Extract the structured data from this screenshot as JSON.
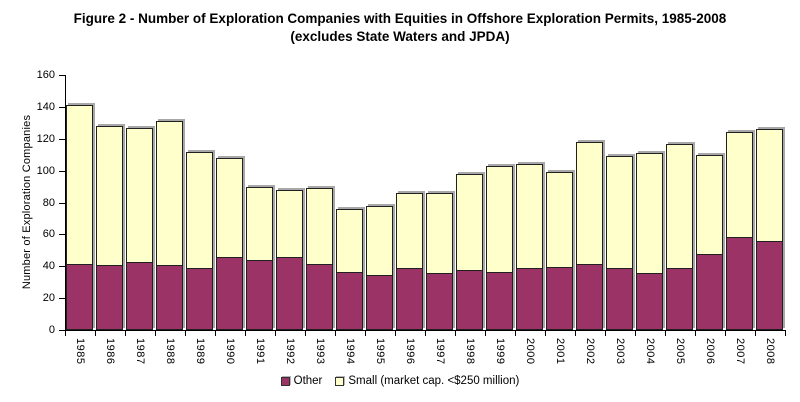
{
  "chart_data": {
    "type": "bar",
    "stacked": true,
    "title": "Figure 2 - Number of Exploration Companies with Equities in Offshore Exploration Permits, 1985-2008",
    "subtitle": "(excludes State Waters and JPDA)",
    "ylabel": "Number of Exploration Companies",
    "xlabel": "",
    "ylim": [
      0,
      160
    ],
    "yticks": [
      0,
      20,
      40,
      60,
      80,
      100,
      120,
      140,
      160
    ],
    "grid": false,
    "legend_position": "bottom",
    "categories": [
      "1985",
      "1986",
      "1987",
      "1988",
      "1989",
      "1990",
      "1991",
      "1992",
      "1993",
      "1994",
      "1995",
      "1996",
      "1997",
      "1998",
      "1999",
      "2000",
      "2001",
      "2002",
      "2003",
      "2004",
      "2005",
      "2006",
      "2007",
      "2008"
    ],
    "series": [
      {
        "name": "Other",
        "color": "#9C3366",
        "values": [
          41,
          40,
          42,
          40,
          38,
          45,
          43,
          45,
          41,
          36,
          34,
          38,
          35,
          37,
          36,
          38,
          39,
          41,
          38,
          35,
          38,
          47,
          58,
          55
        ]
      },
      {
        "name": "Small (market cap. <$250 million)",
        "color": "#FFFFCC",
        "values": [
          100,
          88,
          85,
          91,
          74,
          63,
          47,
          43,
          48,
          40,
          44,
          48,
          51,
          61,
          67,
          66,
          60,
          77,
          71,
          76,
          79,
          63,
          66,
          71
        ]
      }
    ],
    "totals": [
      141,
      128,
      127,
      131,
      112,
      108,
      90,
      88,
      89,
      76,
      78,
      86,
      86,
      98,
      103,
      104,
      99,
      118,
      109,
      111,
      117,
      110,
      124,
      126
    ]
  },
  "colors": {
    "axis": "#000000",
    "bar_border": "#202020",
    "bar_shadow": "#a8a8a8",
    "background": "#ffffff"
  }
}
